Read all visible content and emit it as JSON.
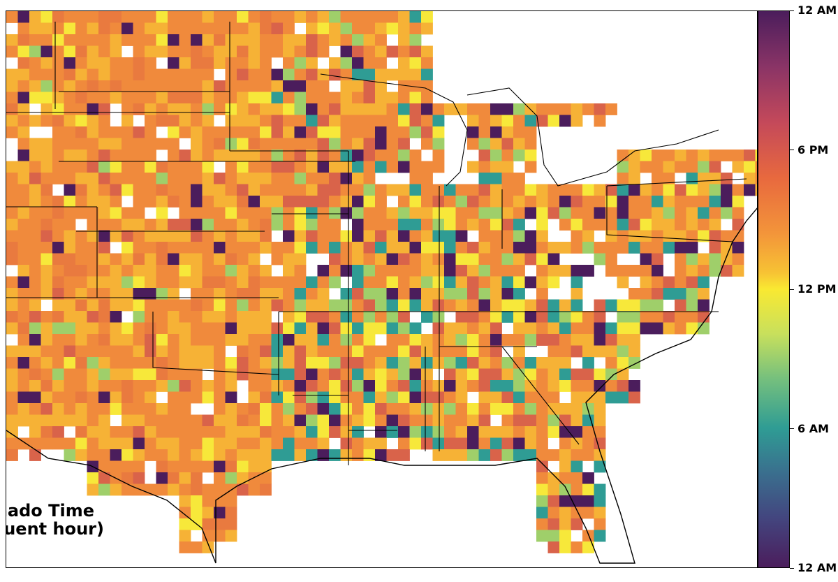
{
  "title": {
    "line1": "Peak Tornado Time",
    "line2": "(Most frequent hour)"
  },
  "colorbar": {
    "ticks": [
      {
        "label": "12 AM",
        "hour": 24
      },
      {
        "label": "6 PM",
        "hour": 18
      },
      {
        "label": "12 PM",
        "hour": 12
      },
      {
        "label": "6 AM",
        "hour": 6
      },
      {
        "label": "12 AM",
        "hour": 0
      }
    ],
    "range": [
      0,
      24
    ],
    "colormap": "plasma-like cyclic (purple-orange-yellow-teal-purple)"
  },
  "colors": {
    "evening": "#f08a3c",
    "afternoon": "#f6b236",
    "noon": "#f7e83a",
    "morning": "#2f9c94",
    "night": "#4b1d5c"
  },
  "map": {
    "region": "Central and Eastern United States",
    "grid": "1-degree cells colored by most frequent tornado hour"
  }
}
